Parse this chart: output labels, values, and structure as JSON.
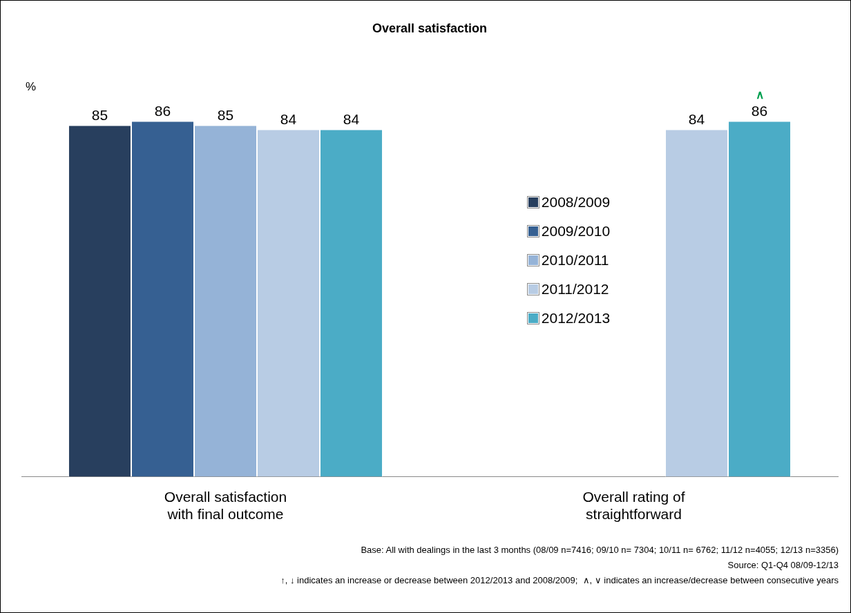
{
  "chart_data": {
    "type": "bar",
    "title": "Overall satisfaction",
    "ylabel": "%",
    "categories": [
      "Overall satisfaction with final outcome",
      "Overall rating of straightforward"
    ],
    "series": [
      {
        "name": "2008/2009",
        "color": "#283f5e",
        "values": [
          85,
          null
        ]
      },
      {
        "name": "2009/2010",
        "color": "#366092",
        "values": [
          86,
          null
        ]
      },
      {
        "name": "2010/2011",
        "color": "#95b3d7",
        "values": [
          85,
          null
        ]
      },
      {
        "name": "2011/2012",
        "color": "#b8cce4",
        "values": [
          84,
          84
        ]
      },
      {
        "name": "2012/2013",
        "color": "#4bacc6",
        "values": [
          84,
          86
        ]
      }
    ],
    "data_labels": true,
    "grid": false,
    "legend": "right",
    "tick_labels": "x",
    "annotations": [
      {
        "text": "∧"
      },
      "Base: All with dealings in the last 3 months (08/09 n=7416; 09/10 n= 7304; 10/11 n= 6762; 11/12 n=4055; 12/13 n=3356)",
      "Source: Q1-Q4 08/09-12/13",
      "↑, ↓ indicates an increase or decrease between 2012/2013 and 2008/2009;  ∧, ∨ indicates an increase/decrease between consecutive years"
    ]
  }
}
